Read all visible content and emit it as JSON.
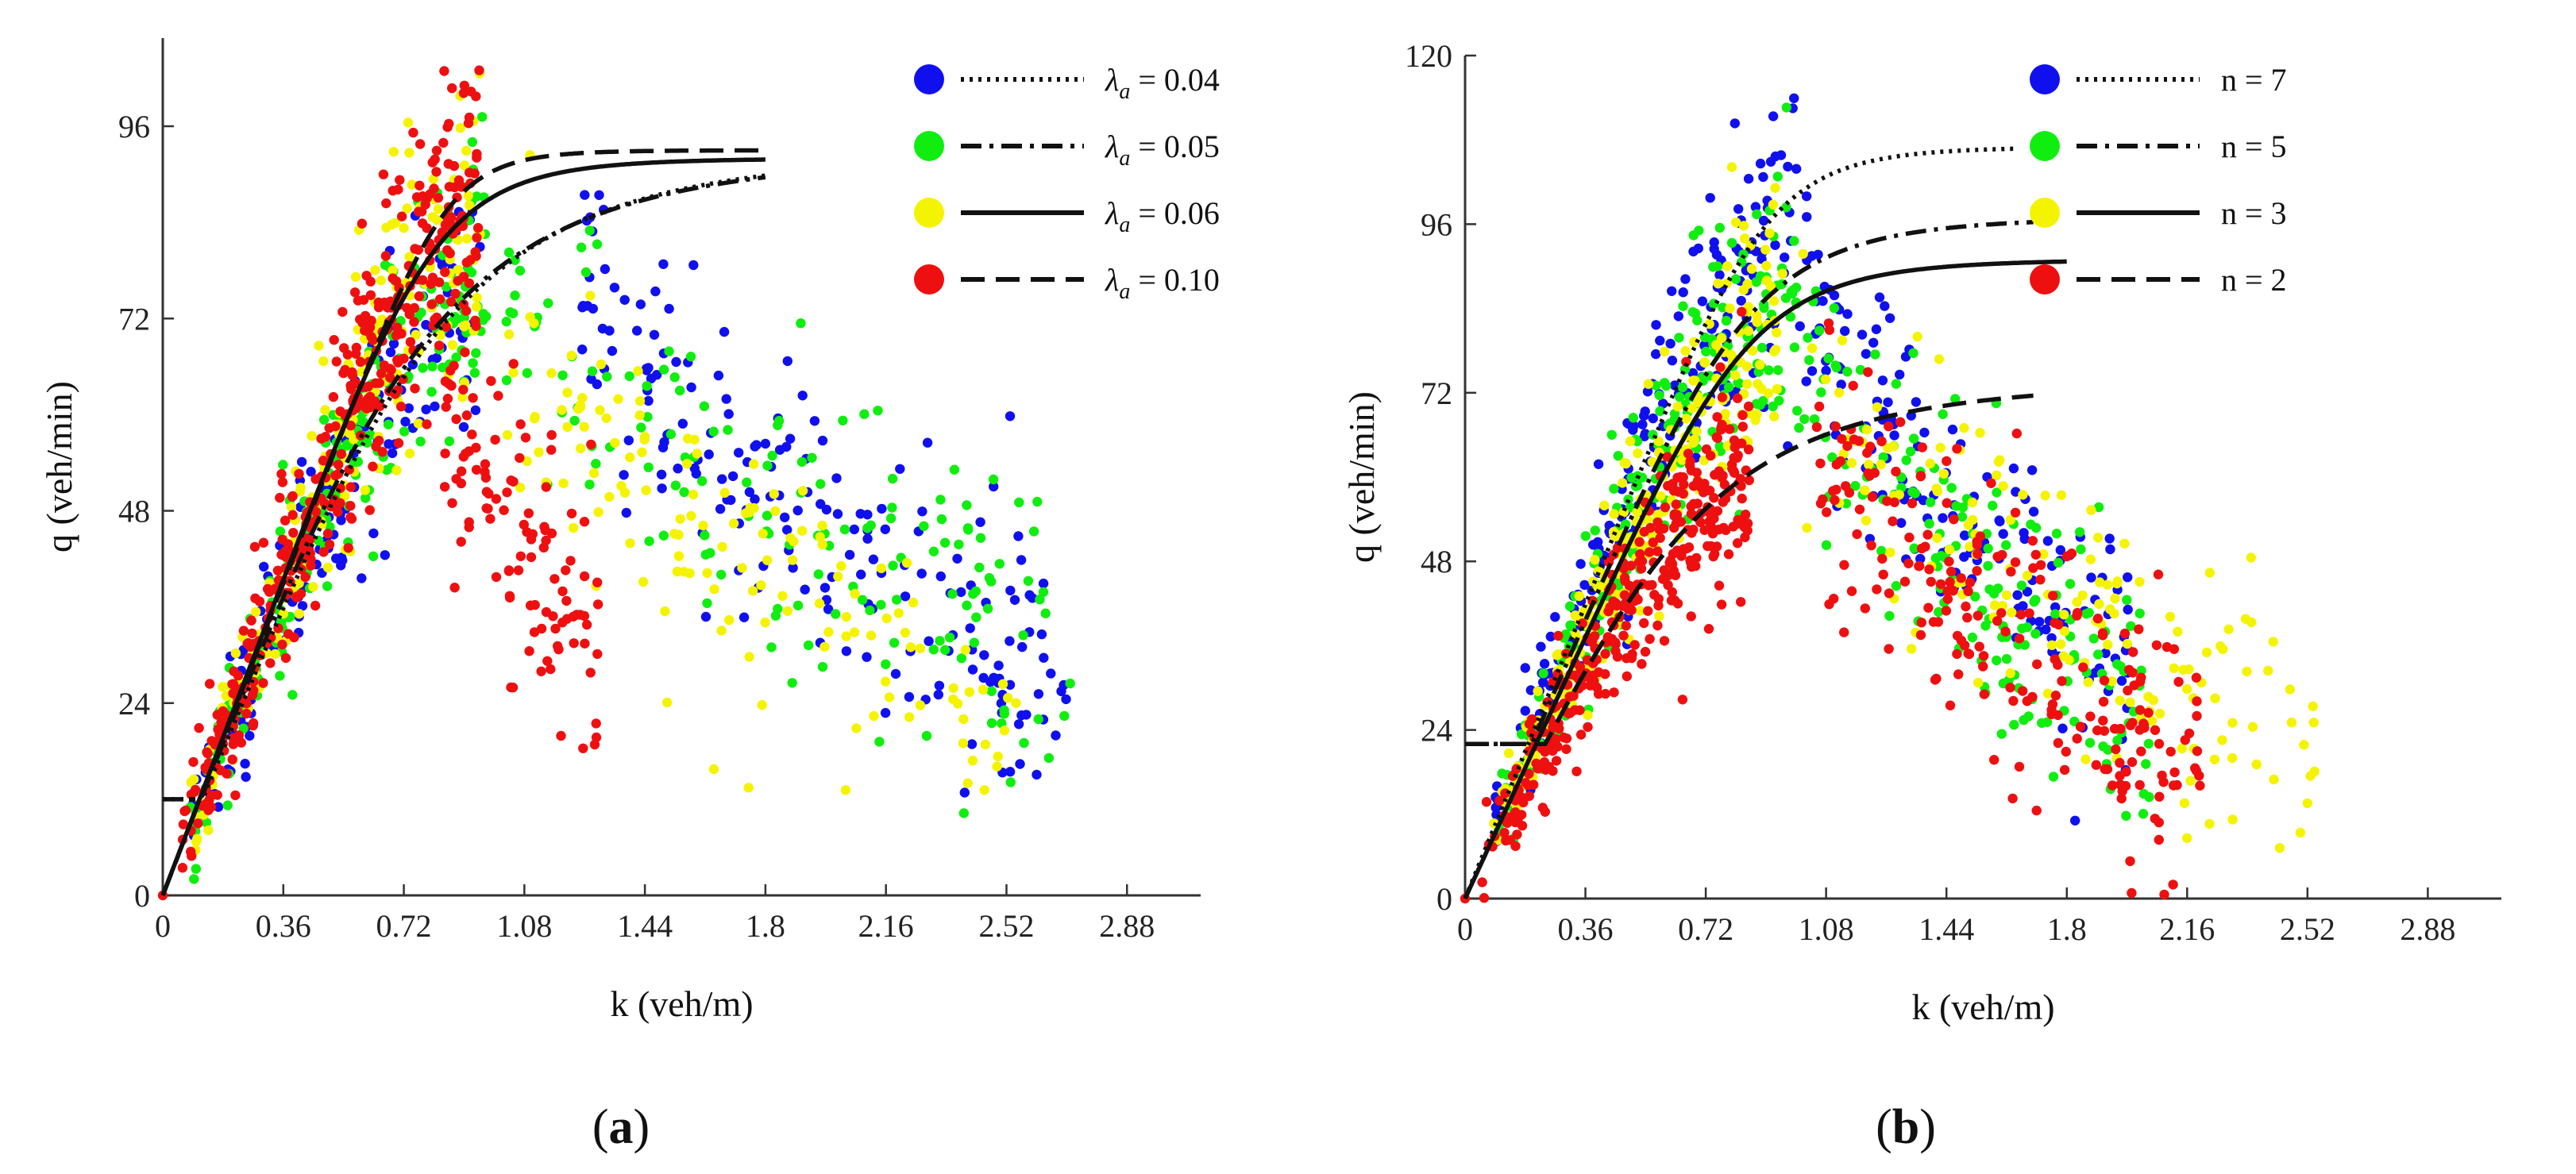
{
  "chart_data": [
    {
      "type": "scatter",
      "panel_label": {
        "open": "(",
        "letter": "a",
        "close": ")"
      },
      "xlabel": "k  (veh/m)",
      "ylabel": "q  (veh/min)",
      "xlim": [
        0,
        3.1
      ],
      "ylim": [
        0,
        107
      ],
      "xticks": [
        "0",
        "0.36",
        "0.72",
        "1.08",
        "1.44",
        "1.8",
        "2.16",
        "2.52",
        "2.88"
      ],
      "yticks": [
        "0",
        "24",
        "48",
        "72",
        "96"
      ],
      "legend_position": "top-right",
      "series": [
        {
          "name": "λa = 0.04",
          "symbol": "λ",
          "sub": "a",
          "rest": " = 0.04",
          "color": "#1010ee",
          "dash": "4,7",
          "line": {
            "kc": 0.92,
            "qm": 93,
            "jamEnd": 1.8,
            "jamV": 12,
            "kj": 1.95,
            "n": 3.2
          },
          "scatter": {
            "seed": 11,
            "uncongested": [
              {
                "k0": 0.08,
                "k1": 0.95,
                "count": 150
              }
            ],
            "congested": {
              "k0": 1.25,
              "k1": 2.7,
              "count": 190,
              "qMax": 74,
              "qMin": 24
            }
          }
        },
        {
          "name": "λa = 0.05",
          "symbol": "λ",
          "sub": "a",
          "rest": " = 0.05",
          "color": "#10ee10",
          "dash": "26,10,5,10",
          "line": {
            "kc": 0.88,
            "qm": 93,
            "jamEnd": 1.8,
            "jamV": 12,
            "kj": 1.9,
            "n": 3.0
          },
          "scatter": {
            "seed": 23,
            "uncongested": [
              {
                "k0": 0.08,
                "k1": 0.97,
                "count": 200
              }
            ],
            "congested": {
              "k0": 1.0,
              "k1": 2.72,
              "count": 150,
              "qMax": 72,
              "qMin": 28
            }
          }
        },
        {
          "name": "λa = 0.06",
          "symbol": "λ",
          "sub": "a",
          "rest": " = 0.06",
          "color": "#f4f400",
          "dash": "",
          "line": {
            "kc": 0.84,
            "qm": 92,
            "jamStart": 1.1,
            "jamEnd": 1.8,
            "jamV": 6,
            "kj": 1.31,
            "n": 6.0
          },
          "scatter": {
            "seed": 37,
            "uncongested": [
              {
                "k0": 0.08,
                "k1": 0.95,
                "count": 200
              }
            ],
            "congested": {
              "k0": 1.02,
              "k1": 2.55,
              "count": 140,
              "qMax": 70,
              "qMin": 20
            }
          }
        },
        {
          "name": "λa = 0.10",
          "symbol": "λ",
          "sub": "a",
          "rest": " = 0.10",
          "color": "#ee1010",
          "dash": "30,14",
          "line": {
            "kc": 0.86,
            "qm": 93,
            "jamStart": 0.95,
            "jamEnd": 1.8,
            "jamV": 5,
            "kj": 1.01,
            "n": 9.0
          },
          "scatter": {
            "seed": 53,
            "uncongested": [
              {
                "k0": 0.05,
                "k1": 0.95,
                "count": 420
              }
            ],
            "congested": {
              "k0": 0.82,
              "k1": 1.3,
              "count": 110,
              "qMax": 64,
              "qMin": 30
            }
          }
        }
      ]
    },
    {
      "type": "scatter",
      "panel_label": {
        "open": "(",
        "letter": "b",
        "close": ")"
      },
      "xlabel": "k  (veh/m)",
      "ylabel": "q  (veh/min)",
      "xlim": [
        0,
        3.1
      ],
      "ylim": [
        0,
        120
      ],
      "xticks": [
        "0",
        "0.36",
        "0.72",
        "1.08",
        "1.44",
        "1.8",
        "2.16",
        "2.52",
        "2.88"
      ],
      "yticks": [
        "0",
        "24",
        "48",
        "72",
        "96",
        "120"
      ],
      "legend_position": "top-right",
      "series": [
        {
          "name": "n = 7",
          "symbol": "",
          "sub": "",
          "rest": "n = 7",
          "color": "#1010ee",
          "dash": "4,7",
          "line": {
            "kc": 0.92,
            "qm": 107,
            "jamStart": 1.3,
            "jamEnd": 1.65,
            "jamV": 5,
            "kj": 1.44,
            "n": 7.0
          },
          "scatter": {
            "seed": 71,
            "uncongested": [
              {
                "k0": 0.08,
                "k1": 1.0,
                "count": 230
              }
            ],
            "congested": {
              "k0": 1.0,
              "k1": 2.0,
              "count": 160,
              "qMax": 88,
              "qMin": 30
            }
          }
        },
        {
          "name": "n = 5",
          "symbol": "",
          "sub": "",
          "rest": "n = 5",
          "color": "#10ee10",
          "dash": "26,10,5,10",
          "line": {
            "kc": 0.88,
            "qm": 97,
            "jamEnd": 1.7,
            "jamV": 22,
            "kj": 1.76,
            "n": 5.0
          },
          "scatter": {
            "seed": 83,
            "uncongested": [
              {
                "k0": 0.08,
                "k1": 1.0,
                "count": 230
              }
            ],
            "congested": {
              "k0": 1.0,
              "k1": 2.05,
              "count": 170,
              "qMax": 76,
              "qMin": 26
            }
          }
        },
        {
          "name": "n = 3",
          "symbol": "",
          "sub": "",
          "rest": "n = 3",
          "color": "#f4f400",
          "dash": "",
          "line": {
            "kc": 0.88,
            "qm": 91,
            "jamStart": 1.2,
            "jamEnd": 1.8,
            "jamV": 6,
            "kj": 1.32,
            "n": 5.5
          },
          "scatter": {
            "seed": 97,
            "uncongested": [
              {
                "k0": 0.08,
                "k1": 0.95,
                "count": 260
              }
            ],
            "congested": {
              "k0": 1.0,
              "k1": 2.55,
              "count": 150,
              "qMax": 72,
              "qMin": 20
            }
          }
        },
        {
          "name": "n = 2",
          "symbol": "",
          "sub": "",
          "rest": "n = 2",
          "color": "#ee1010",
          "dash": "30,14",
          "line": {
            "kc": 0.8,
            "qm": 74,
            "jamEnd": 1.7,
            "jamV": 22,
            "kj": 1.75,
            "n": 3.0
          },
          "scatter": {
            "seed": 109,
            "uncongested": [
              {
                "k0": 0.05,
                "k1": 0.85,
                "count": 360
              }
            ],
            "congested": {
              "k0": 1.05,
              "k1": 2.2,
              "count": 230,
              "qMax": 65,
              "qMin": 18
            }
          }
        }
      ]
    }
  ]
}
